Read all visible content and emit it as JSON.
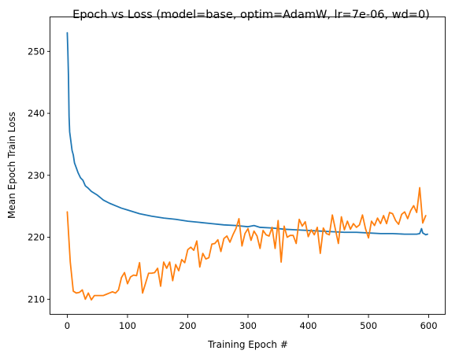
{
  "chart_data": {
    "type": "line",
    "title": "Epoch vs Loss (model=base, optim=AdamW, lr=7e-06, wd=0)",
    "xlabel": "Training Epoch #",
    "ylabel": "Mean Epoch Train Loss",
    "xlim": [
      -28,
      628
    ],
    "ylim": [
      207.5,
      255.5
    ],
    "xticks": [
      0,
      100,
      200,
      300,
      400,
      500,
      600
    ],
    "yticks": [
      210,
      220,
      230,
      240,
      250
    ],
    "grid": false,
    "legend": "none",
    "series": [
      {
        "color": "#1f77b4",
        "points": [
          [
            0,
            253.0
          ],
          [
            1,
            250.0
          ],
          [
            2,
            246.0
          ],
          [
            3,
            239.5
          ],
          [
            4,
            237.0
          ],
          [
            6,
            235.5
          ],
          [
            8,
            234.0
          ],
          [
            10,
            233.3
          ],
          [
            12,
            232.0
          ],
          [
            15,
            231.2
          ],
          [
            18,
            230.4
          ],
          [
            22,
            229.6
          ],
          [
            26,
            229.2
          ],
          [
            30,
            228.3
          ],
          [
            35,
            227.9
          ],
          [
            40,
            227.4
          ],
          [
            50,
            226.8
          ],
          [
            60,
            226.0
          ],
          [
            70,
            225.5
          ],
          [
            80,
            225.1
          ],
          [
            90,
            224.7
          ],
          [
            100,
            224.4
          ],
          [
            120,
            223.8
          ],
          [
            140,
            223.4
          ],
          [
            160,
            223.1
          ],
          [
            180,
            222.9
          ],
          [
            200,
            222.6
          ],
          [
            220,
            222.4
          ],
          [
            240,
            222.2
          ],
          [
            260,
            222.0
          ],
          [
            280,
            221.9
          ],
          [
            300,
            221.7
          ],
          [
            310,
            221.9
          ],
          [
            320,
            221.6
          ],
          [
            340,
            221.5
          ],
          [
            360,
            221.3
          ],
          [
            380,
            221.2
          ],
          [
            400,
            221.1
          ],
          [
            420,
            221.0
          ],
          [
            440,
            220.9
          ],
          [
            460,
            220.8
          ],
          [
            480,
            220.8
          ],
          [
            500,
            220.7
          ],
          [
            520,
            220.6
          ],
          [
            540,
            220.6
          ],
          [
            560,
            220.5
          ],
          [
            580,
            220.5
          ],
          [
            585,
            220.6
          ],
          [
            588,
            221.4
          ],
          [
            590,
            220.7
          ],
          [
            595,
            220.4
          ],
          [
            598,
            220.5
          ]
        ]
      },
      {
        "color": "#ff7f0e",
        "points": [
          [
            0,
            224.1
          ],
          [
            5,
            216.0
          ],
          [
            10,
            211.3
          ],
          [
            15,
            211.0
          ],
          [
            20,
            211.1
          ],
          [
            25,
            211.5
          ],
          [
            30,
            210.0
          ],
          [
            35,
            211.0
          ],
          [
            40,
            209.9
          ],
          [
            45,
            210.6
          ],
          [
            50,
            210.6
          ],
          [
            55,
            210.6
          ],
          [
            60,
            210.6
          ],
          [
            65,
            210.8
          ],
          [
            70,
            211.0
          ],
          [
            75,
            211.2
          ],
          [
            80,
            211.0
          ],
          [
            85,
            211.5
          ],
          [
            90,
            213.5
          ],
          [
            95,
            214.3
          ],
          [
            100,
            212.5
          ],
          [
            105,
            213.6
          ],
          [
            110,
            213.9
          ],
          [
            115,
            213.8
          ],
          [
            120,
            215.9
          ],
          [
            125,
            211.0
          ],
          [
            130,
            212.6
          ],
          [
            135,
            214.2
          ],
          [
            140,
            214.2
          ],
          [
            145,
            214.3
          ],
          [
            150,
            215.0
          ],
          [
            155,
            212.1
          ],
          [
            160,
            216.0
          ],
          [
            165,
            215.0
          ],
          [
            170,
            216.0
          ],
          [
            175,
            213.0
          ],
          [
            180,
            215.6
          ],
          [
            185,
            214.6
          ],
          [
            190,
            216.4
          ],
          [
            195,
            215.9
          ],
          [
            200,
            218.0
          ],
          [
            205,
            218.4
          ],
          [
            210,
            217.9
          ],
          [
            215,
            219.4
          ],
          [
            220,
            215.2
          ],
          [
            225,
            217.4
          ],
          [
            230,
            216.5
          ],
          [
            235,
            216.7
          ],
          [
            240,
            218.9
          ],
          [
            245,
            219.0
          ],
          [
            250,
            219.6
          ],
          [
            255,
            217.7
          ],
          [
            260,
            219.8
          ],
          [
            265,
            220.2
          ],
          [
            270,
            219.2
          ],
          [
            275,
            220.4
          ],
          [
            280,
            221.4
          ],
          [
            285,
            223.0
          ],
          [
            290,
            218.6
          ],
          [
            295,
            220.6
          ],
          [
            300,
            221.4
          ],
          [
            305,
            219.5
          ],
          [
            310,
            221.0
          ],
          [
            315,
            220.2
          ],
          [
            320,
            218.2
          ],
          [
            325,
            221.1
          ],
          [
            330,
            220.4
          ],
          [
            335,
            220.2
          ],
          [
            340,
            221.6
          ],
          [
            345,
            218.2
          ],
          [
            350,
            222.7
          ],
          [
            355,
            216.0
          ],
          [
            360,
            221.8
          ],
          [
            365,
            220.0
          ],
          [
            370,
            220.3
          ],
          [
            375,
            220.3
          ],
          [
            380,
            219.0
          ],
          [
            385,
            222.9
          ],
          [
            390,
            221.8
          ],
          [
            395,
            222.5
          ],
          [
            400,
            220.1
          ],
          [
            405,
            221.2
          ],
          [
            410,
            220.4
          ],
          [
            415,
            221.6
          ],
          [
            420,
            217.4
          ],
          [
            425,
            221.5
          ],
          [
            430,
            220.6
          ],
          [
            435,
            220.4
          ],
          [
            440,
            223.6
          ],
          [
            445,
            221.3
          ],
          [
            450,
            219.0
          ],
          [
            455,
            223.3
          ],
          [
            460,
            221.2
          ],
          [
            465,
            222.6
          ],
          [
            470,
            221.3
          ],
          [
            475,
            222.2
          ],
          [
            480,
            221.6
          ],
          [
            485,
            222.0
          ],
          [
            490,
            223.6
          ],
          [
            495,
            221.4
          ],
          [
            500,
            219.9
          ],
          [
            505,
            222.6
          ],
          [
            510,
            221.9
          ],
          [
            515,
            223.1
          ],
          [
            520,
            222.2
          ],
          [
            525,
            223.5
          ],
          [
            530,
            222.2
          ],
          [
            535,
            224.0
          ],
          [
            540,
            223.8
          ],
          [
            545,
            222.7
          ],
          [
            550,
            222.1
          ],
          [
            555,
            223.7
          ],
          [
            560,
            224.1
          ],
          [
            565,
            223.0
          ],
          [
            570,
            224.3
          ],
          [
            575,
            225.1
          ],
          [
            580,
            224.0
          ],
          [
            585,
            228.0
          ],
          [
            590,
            222.3
          ],
          [
            595,
            223.5
          ]
        ]
      }
    ]
  }
}
